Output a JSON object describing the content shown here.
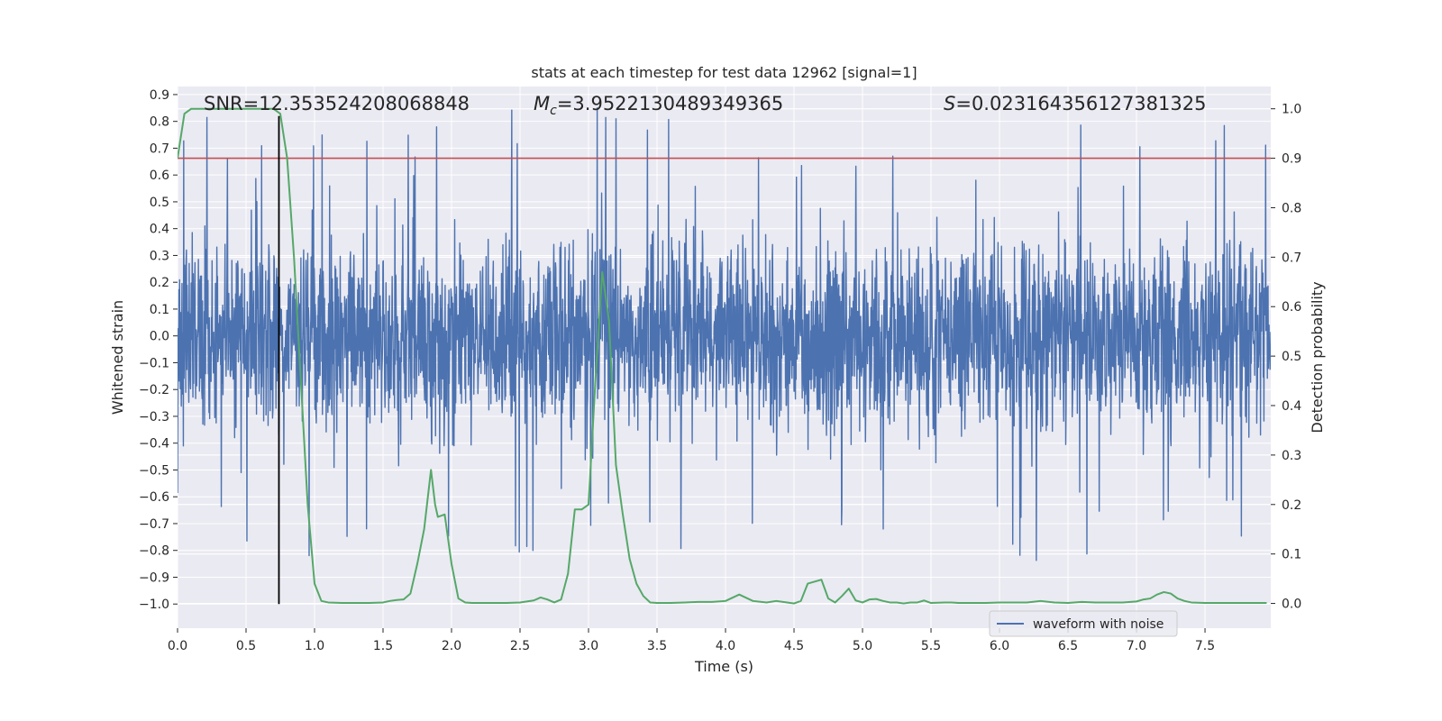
{
  "chart_data": {
    "type": "line",
    "title": "stats at each timestep for test data 12962 [signal=1]",
    "xlabel": "Time (s)",
    "ylabel_left": "Whitened strain",
    "ylabel_right": "Detection probability",
    "xlim": [
      0.0,
      7.98
    ],
    "ylim_left": [
      -1.09,
      0.93
    ],
    "ylim_right": [
      -0.05,
      1.045
    ],
    "x_ticks": [
      0.0,
      0.5,
      1.0,
      1.5,
      2.0,
      2.5,
      3.0,
      3.5,
      4.0,
      4.5,
      5.0,
      5.5,
      6.0,
      6.5,
      7.0,
      7.5
    ],
    "x_tick_labels": [
      "0.0",
      "0.5",
      "1.0",
      "1.5",
      "2.0",
      "2.5",
      "3.0",
      "3.5",
      "4.0",
      "4.5",
      "5.0",
      "5.5",
      "6.0",
      "6.5",
      "7.0",
      "7.5"
    ],
    "y_left_ticks": [
      0.9,
      0.8,
      0.7,
      0.6,
      0.5,
      0.4,
      0.3,
      0.2,
      0.1,
      0.0,
      -0.1,
      -0.2,
      -0.3,
      -0.4,
      -0.5,
      -0.6,
      -0.7,
      -0.8,
      -0.9,
      -1.0
    ],
    "y_left_tick_labels": [
      "0.9",
      "0.8",
      "0.7",
      "0.6",
      "0.5",
      "0.4",
      "0.3",
      "0.2",
      "0.1",
      "0.0",
      "−0.1",
      "−0.2",
      "−0.3",
      "−0.4",
      "−0.5",
      "−0.6",
      "−0.7",
      "−0.8",
      "−0.9",
      "−1.0"
    ],
    "y_right_ticks": [
      1.0,
      0.9,
      0.8,
      0.7,
      0.6,
      0.5,
      0.4,
      0.3,
      0.2,
      0.1,
      0.0
    ],
    "y_right_tick_labels": [
      "1.0",
      "0.9",
      "0.8",
      "0.7",
      "0.6",
      "0.5",
      "0.4",
      "0.3",
      "0.2",
      "0.1",
      "0.0"
    ],
    "annotations": {
      "snr": "SNR=12.353524208068848",
      "mc_symbol": "M",
      "mc_sub": "c",
      "mc_value": "=3.9522130489349365",
      "s_symbol": "S",
      "s_value": "=0.023164356127381325"
    },
    "legend": {
      "label": "waveform with noise",
      "placement": "lower-right"
    },
    "threshold_prob": 0.9,
    "event_time": 0.74,
    "event_line_range": [
      -1.0,
      0.82
    ],
    "waveform": {
      "name": "waveform with noise",
      "noise_sigma": 0.17,
      "seed": 12962,
      "n_points": 3200
    },
    "detection_probability": {
      "name": "detection probability",
      "x": [
        0.0,
        0.05,
        0.1,
        0.15,
        0.2,
        0.3,
        0.4,
        0.5,
        0.6,
        0.7,
        0.75,
        0.8,
        0.85,
        0.9,
        0.95,
        1.0,
        1.05,
        1.1,
        1.2,
        1.3,
        1.4,
        1.5,
        1.55,
        1.6,
        1.65,
        1.7,
        1.75,
        1.8,
        1.85,
        1.88,
        1.9,
        1.95,
        2.0,
        2.05,
        2.1,
        2.15,
        2.2,
        2.3,
        2.4,
        2.5,
        2.6,
        2.65,
        2.7,
        2.75,
        2.8,
        2.85,
        2.9,
        2.95,
        3.0,
        3.05,
        3.1,
        3.15,
        3.2,
        3.25,
        3.3,
        3.35,
        3.4,
        3.45,
        3.5,
        3.55,
        3.6,
        3.7,
        3.8,
        3.9,
        4.0,
        4.1,
        4.2,
        4.3,
        4.37,
        4.45,
        4.5,
        4.55,
        4.6,
        4.7,
        4.75,
        4.8,
        4.85,
        4.9,
        4.95,
        5.0,
        5.05,
        5.1,
        5.15,
        5.2,
        5.25,
        5.3,
        5.35,
        5.4,
        5.45,
        5.5,
        5.6,
        5.65,
        5.7,
        5.8,
        5.9,
        6.0,
        6.1,
        6.2,
        6.3,
        6.4,
        6.5,
        6.6,
        6.7,
        6.8,
        6.9,
        7.0,
        7.05,
        7.1,
        7.15,
        7.2,
        7.25,
        7.3,
        7.35,
        7.4,
        7.5,
        7.6,
        7.7,
        7.8,
        7.9,
        7.95
      ],
      "y": [
        0.9,
        0.99,
        1.0,
        1.0,
        1.0,
        1.0,
        1.0,
        1.0,
        1.0,
        1.0,
        0.99,
        0.9,
        0.7,
        0.45,
        0.2,
        0.04,
        0.005,
        0.002,
        0.001,
        0.001,
        0.001,
        0.002,
        0.005,
        0.007,
        0.008,
        0.02,
        0.08,
        0.15,
        0.27,
        0.2,
        0.175,
        0.18,
        0.08,
        0.01,
        0.002,
        0.001,
        0.001,
        0.001,
        0.001,
        0.002,
        0.006,
        0.012,
        0.008,
        0.002,
        0.008,
        0.06,
        0.19,
        0.19,
        0.2,
        0.45,
        0.67,
        0.57,
        0.28,
        0.18,
        0.09,
        0.04,
        0.015,
        0.002,
        0.001,
        0.001,
        0.001,
        0.002,
        0.003,
        0.003,
        0.005,
        0.018,
        0.005,
        0.002,
        0.005,
        0.002,
        0.0,
        0.005,
        0.04,
        0.048,
        0.01,
        0.002,
        0.015,
        0.03,
        0.006,
        0.002,
        0.008,
        0.009,
        0.005,
        0.002,
        0.002,
        0.0,
        0.002,
        0.002,
        0.006,
        0.001,
        0.002,
        0.002,
        0.001,
        0.001,
        0.001,
        0.002,
        0.002,
        0.002,
        0.005,
        0.002,
        0.001,
        0.003,
        0.002,
        0.002,
        0.002,
        0.004,
        0.008,
        0.01,
        0.018,
        0.023,
        0.02,
        0.01,
        0.005,
        0.002,
        0.001,
        0.001,
        0.001,
        0.001,
        0.001,
        0.001
      ]
    },
    "colors": {
      "background": "#eaeaf2",
      "grid": "#ffffff",
      "waveform": "#4c72b0",
      "probability": "#55a868",
      "threshold": "#c44e52",
      "event_line": "#000000",
      "text": "#262626"
    }
  }
}
